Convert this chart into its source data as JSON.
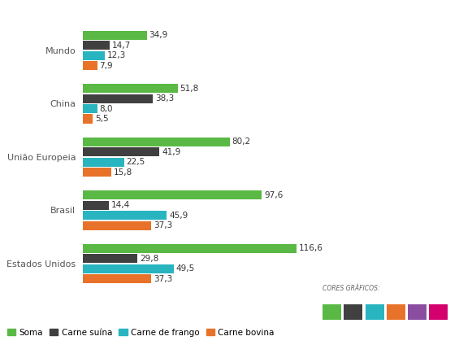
{
  "categories": [
    "Estados Unidos",
    "Brasil",
    "União Europeia",
    "China",
    "Mundo"
  ],
  "series": {
    "Soma": [
      116.6,
      97.6,
      80.2,
      51.8,
      34.9
    ],
    "Carne suína": [
      29.8,
      14.4,
      41.9,
      38.3,
      14.7
    ],
    "Carne de frango": [
      49.5,
      45.9,
      22.5,
      8.0,
      12.3
    ],
    "Carne bovina": [
      37.3,
      37.3,
      15.8,
      5.5,
      7.9
    ]
  },
  "colors": {
    "Soma": "#5ab944",
    "Carne suína": "#404040",
    "Carne de frango": "#28b5c0",
    "Carne bovina": "#e8722a"
  },
  "bar_height": 0.17,
  "bar_gap": 0.19,
  "label_fontsize": 7.5,
  "legend_fontsize": 7.5,
  "tick_fontsize": 8,
  "xlim": [
    0,
    145
  ],
  "background_color": "#ffffff",
  "legend_labels": [
    "Soma",
    "Carne suína",
    "Carne de frango",
    "Carne bovina"
  ],
  "cores_graficos_title": "CORES GRÁFICOS:",
  "cores_graficos_colors": [
    "#5ab944",
    "#404040",
    "#28b5c0",
    "#e8722a",
    "#8b4da0",
    "#d4006e"
  ],
  "cores_graficos_labels": [
    "Soma",
    "Carne suína",
    "Carne de frango",
    "Carne bovina",
    "",
    ""
  ]
}
